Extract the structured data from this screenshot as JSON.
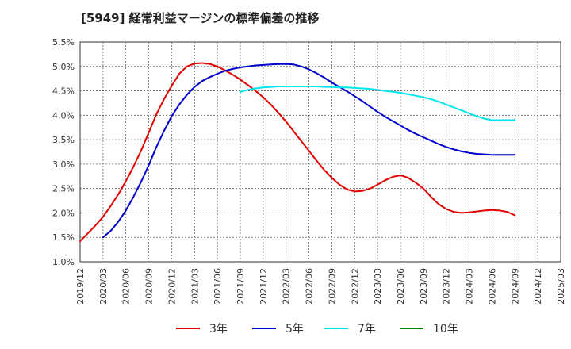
{
  "title": "[5949]  経常利益マージンの標準偏差の推移",
  "chart_data": {
    "type": "line",
    "title": "[5949]  経常利益マージンの標準偏差の推移",
    "xlabel": "",
    "ylabel": "",
    "y_unit": "%",
    "ylim": [
      1.0,
      5.5
    ],
    "y_ticks": [
      "1.0%",
      "1.5%",
      "2.0%",
      "2.5%",
      "3.0%",
      "3.5%",
      "4.0%",
      "4.5%",
      "5.0%",
      "5.5%"
    ],
    "x_ticks": [
      "2019/12",
      "2020/03",
      "2020/06",
      "2020/09",
      "2020/12",
      "2021/03",
      "2021/06",
      "2021/09",
      "2021/12",
      "2022/03",
      "2022/06",
      "2022/09",
      "2022/12",
      "2023/03",
      "2023/06",
      "2023/09",
      "2023/12",
      "2024/03",
      "2024/06",
      "2024/09",
      "2024/12",
      "2025/03"
    ],
    "grid": true,
    "legend_position": "bottom",
    "series": [
      {
        "name": "3年",
        "color": "#e00000",
        "points": [
          [
            "2019/12",
            1.42
          ],
          [
            "2020/01",
            1.58
          ],
          [
            "2020/02",
            1.74
          ],
          [
            "2020/03",
            1.92
          ],
          [
            "2020/04",
            2.14
          ],
          [
            "2020/05",
            2.38
          ],
          [
            "2020/06",
            2.65
          ],
          [
            "2020/07",
            2.95
          ],
          [
            "2020/08",
            3.28
          ],
          [
            "2020/09",
            3.65
          ],
          [
            "2020/10",
            4.02
          ],
          [
            "2020/11",
            4.33
          ],
          [
            "2020/12",
            4.6
          ],
          [
            "2021/01",
            4.85
          ],
          [
            "2021/02",
            5.0
          ],
          [
            "2021/03",
            5.06
          ],
          [
            "2021/04",
            5.07
          ],
          [
            "2021/05",
            5.05
          ],
          [
            "2021/06",
            5.0
          ],
          [
            "2021/07",
            4.92
          ],
          [
            "2021/08",
            4.83
          ],
          [
            "2021/09",
            4.73
          ],
          [
            "2021/10",
            4.62
          ],
          [
            "2021/11",
            4.5
          ],
          [
            "2021/12",
            4.37
          ],
          [
            "2022/01",
            4.22
          ],
          [
            "2022/02",
            4.05
          ],
          [
            "2022/03",
            3.87
          ],
          [
            "2022/04",
            3.67
          ],
          [
            "2022/05",
            3.47
          ],
          [
            "2022/06",
            3.27
          ],
          [
            "2022/07",
            3.07
          ],
          [
            "2022/08",
            2.88
          ],
          [
            "2022/09",
            2.72
          ],
          [
            "2022/10",
            2.58
          ],
          [
            "2022/11",
            2.48
          ],
          [
            "2022/12",
            2.44
          ],
          [
            "2023/01",
            2.45
          ],
          [
            "2023/02",
            2.5
          ],
          [
            "2023/03",
            2.58
          ],
          [
            "2023/04",
            2.67
          ],
          [
            "2023/05",
            2.74
          ],
          [
            "2023/06",
            2.77
          ],
          [
            "2023/07",
            2.72
          ],
          [
            "2023/08",
            2.62
          ],
          [
            "2023/09",
            2.5
          ],
          [
            "2023/10",
            2.33
          ],
          [
            "2023/11",
            2.18
          ],
          [
            "2023/12",
            2.08
          ],
          [
            "2024/01",
            2.02
          ],
          [
            "2024/02",
            2.0
          ],
          [
            "2024/03",
            2.01
          ],
          [
            "2024/04",
            2.03
          ],
          [
            "2024/05",
            2.05
          ],
          [
            "2024/06",
            2.06
          ],
          [
            "2024/07",
            2.05
          ],
          [
            "2024/08",
            2.02
          ],
          [
            "2024/09",
            1.95
          ]
        ]
      },
      {
        "name": "5年",
        "color": "#0000cc",
        "points": [
          [
            "2020/03",
            1.5
          ],
          [
            "2020/04",
            1.63
          ],
          [
            "2020/05",
            1.82
          ],
          [
            "2020/06",
            2.05
          ],
          [
            "2020/07",
            2.33
          ],
          [
            "2020/08",
            2.64
          ],
          [
            "2020/09",
            2.98
          ],
          [
            "2020/10",
            3.35
          ],
          [
            "2020/11",
            3.68
          ],
          [
            "2020/12",
            3.98
          ],
          [
            "2021/01",
            4.22
          ],
          [
            "2021/02",
            4.42
          ],
          [
            "2021/03",
            4.58
          ],
          [
            "2021/04",
            4.7
          ],
          [
            "2021/05",
            4.78
          ],
          [
            "2021/06",
            4.85
          ],
          [
            "2021/07",
            4.91
          ],
          [
            "2021/08",
            4.95
          ],
          [
            "2021/09",
            4.98
          ],
          [
            "2021/10",
            5.0
          ],
          [
            "2021/11",
            5.02
          ],
          [
            "2021/12",
            5.03
          ],
          [
            "2022/01",
            5.04
          ],
          [
            "2022/02",
            5.05
          ],
          [
            "2022/03",
            5.05
          ],
          [
            "2022/04",
            5.04
          ],
          [
            "2022/05",
            5.0
          ],
          [
            "2022/06",
            4.94
          ],
          [
            "2022/07",
            4.86
          ],
          [
            "2022/08",
            4.77
          ],
          [
            "2022/09",
            4.67
          ],
          [
            "2022/10",
            4.58
          ],
          [
            "2022/11",
            4.49
          ],
          [
            "2022/12",
            4.39
          ],
          [
            "2023/01",
            4.29
          ],
          [
            "2023/02",
            4.18
          ],
          [
            "2023/03",
            4.07
          ],
          [
            "2023/04",
            3.97
          ],
          [
            "2023/05",
            3.88
          ],
          [
            "2023/06",
            3.79
          ],
          [
            "2023/07",
            3.7
          ],
          [
            "2023/08",
            3.62
          ],
          [
            "2023/09",
            3.55
          ],
          [
            "2023/10",
            3.48
          ],
          [
            "2023/11",
            3.41
          ],
          [
            "2023/12",
            3.35
          ],
          [
            "2024/01",
            3.3
          ],
          [
            "2024/02",
            3.26
          ],
          [
            "2024/03",
            3.23
          ],
          [
            "2024/04",
            3.21
          ],
          [
            "2024/05",
            3.2
          ],
          [
            "2024/06",
            3.19
          ],
          [
            "2024/07",
            3.19
          ],
          [
            "2024/08",
            3.19
          ],
          [
            "2024/09",
            3.19
          ]
        ]
      },
      {
        "name": "7年",
        "color": "#00e5ee",
        "points": [
          [
            "2021/09",
            4.48
          ],
          [
            "2021/10",
            4.52
          ],
          [
            "2021/11",
            4.55
          ],
          [
            "2021/12",
            4.57
          ],
          [
            "2022/01",
            4.58
          ],
          [
            "2022/02",
            4.59
          ],
          [
            "2022/03",
            4.59
          ],
          [
            "2022/04",
            4.59
          ],
          [
            "2022/05",
            4.59
          ],
          [
            "2022/06",
            4.59
          ],
          [
            "2022/07",
            4.59
          ],
          [
            "2022/08",
            4.58
          ],
          [
            "2022/09",
            4.58
          ],
          [
            "2022/10",
            4.57
          ],
          [
            "2022/11",
            4.57
          ],
          [
            "2022/12",
            4.56
          ],
          [
            "2023/01",
            4.55
          ],
          [
            "2023/02",
            4.54
          ],
          [
            "2023/03",
            4.52
          ],
          [
            "2023/04",
            4.5
          ],
          [
            "2023/05",
            4.48
          ],
          [
            "2023/06",
            4.46
          ],
          [
            "2023/07",
            4.43
          ],
          [
            "2023/08",
            4.4
          ],
          [
            "2023/09",
            4.37
          ],
          [
            "2023/10",
            4.33
          ],
          [
            "2023/11",
            4.28
          ],
          [
            "2023/12",
            4.22
          ],
          [
            "2024/01",
            4.16
          ],
          [
            "2024/02",
            4.1
          ],
          [
            "2024/03",
            4.04
          ],
          [
            "2024/04",
            3.98
          ],
          [
            "2024/05",
            3.93
          ],
          [
            "2024/06",
            3.9
          ],
          [
            "2024/07",
            3.9
          ],
          [
            "2024/08",
            3.9
          ],
          [
            "2024/09",
            3.9
          ]
        ]
      },
      {
        "name": "10年",
        "color": "#008000",
        "points": []
      }
    ]
  }
}
